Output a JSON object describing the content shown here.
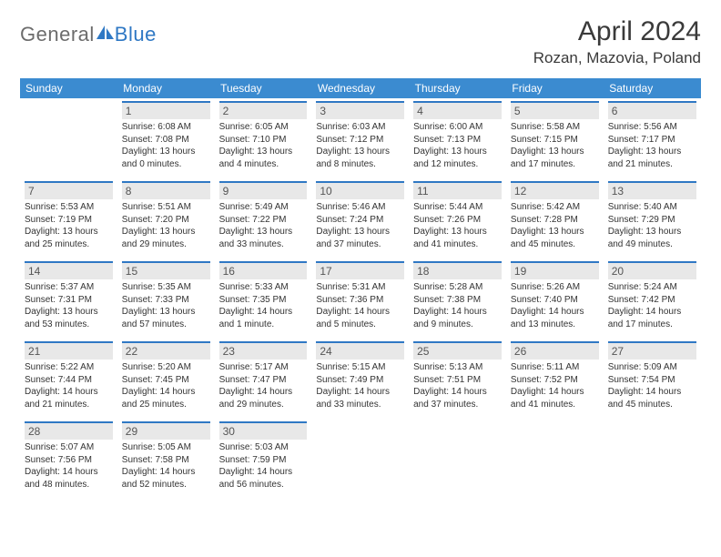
{
  "brand": {
    "word1": "General",
    "word2": "Blue"
  },
  "header": {
    "monthTitle": "April 2024",
    "location": "Rozan, Mazovia, Poland"
  },
  "colors": {
    "headerBar": "#3b8bd0",
    "dayBorder": "#2f78c4",
    "dayBg": "#e8e8e8",
    "text": "#333333"
  },
  "weekdays": [
    "Sunday",
    "Monday",
    "Tuesday",
    "Wednesday",
    "Thursday",
    "Friday",
    "Saturday"
  ],
  "weeks": [
    [
      null,
      {
        "n": "1",
        "sr": "6:08 AM",
        "ss": "7:08 PM",
        "dl": "13 hours and 0 minutes."
      },
      {
        "n": "2",
        "sr": "6:05 AM",
        "ss": "7:10 PM",
        "dl": "13 hours and 4 minutes."
      },
      {
        "n": "3",
        "sr": "6:03 AM",
        "ss": "7:12 PM",
        "dl": "13 hours and 8 minutes."
      },
      {
        "n": "4",
        "sr": "6:00 AM",
        "ss": "7:13 PM",
        "dl": "13 hours and 12 minutes."
      },
      {
        "n": "5",
        "sr": "5:58 AM",
        "ss": "7:15 PM",
        "dl": "13 hours and 17 minutes."
      },
      {
        "n": "6",
        "sr": "5:56 AM",
        "ss": "7:17 PM",
        "dl": "13 hours and 21 minutes."
      }
    ],
    [
      {
        "n": "7",
        "sr": "5:53 AM",
        "ss": "7:19 PM",
        "dl": "13 hours and 25 minutes."
      },
      {
        "n": "8",
        "sr": "5:51 AM",
        "ss": "7:20 PM",
        "dl": "13 hours and 29 minutes."
      },
      {
        "n": "9",
        "sr": "5:49 AM",
        "ss": "7:22 PM",
        "dl": "13 hours and 33 minutes."
      },
      {
        "n": "10",
        "sr": "5:46 AM",
        "ss": "7:24 PM",
        "dl": "13 hours and 37 minutes."
      },
      {
        "n": "11",
        "sr": "5:44 AM",
        "ss": "7:26 PM",
        "dl": "13 hours and 41 minutes."
      },
      {
        "n": "12",
        "sr": "5:42 AM",
        "ss": "7:28 PM",
        "dl": "13 hours and 45 minutes."
      },
      {
        "n": "13",
        "sr": "5:40 AM",
        "ss": "7:29 PM",
        "dl": "13 hours and 49 minutes."
      }
    ],
    [
      {
        "n": "14",
        "sr": "5:37 AM",
        "ss": "7:31 PM",
        "dl": "13 hours and 53 minutes."
      },
      {
        "n": "15",
        "sr": "5:35 AM",
        "ss": "7:33 PM",
        "dl": "13 hours and 57 minutes."
      },
      {
        "n": "16",
        "sr": "5:33 AM",
        "ss": "7:35 PM",
        "dl": "14 hours and 1 minute."
      },
      {
        "n": "17",
        "sr": "5:31 AM",
        "ss": "7:36 PM",
        "dl": "14 hours and 5 minutes."
      },
      {
        "n": "18",
        "sr": "5:28 AM",
        "ss": "7:38 PM",
        "dl": "14 hours and 9 minutes."
      },
      {
        "n": "19",
        "sr": "5:26 AM",
        "ss": "7:40 PM",
        "dl": "14 hours and 13 minutes."
      },
      {
        "n": "20",
        "sr": "5:24 AM",
        "ss": "7:42 PM",
        "dl": "14 hours and 17 minutes."
      }
    ],
    [
      {
        "n": "21",
        "sr": "5:22 AM",
        "ss": "7:44 PM",
        "dl": "14 hours and 21 minutes."
      },
      {
        "n": "22",
        "sr": "5:20 AM",
        "ss": "7:45 PM",
        "dl": "14 hours and 25 minutes."
      },
      {
        "n": "23",
        "sr": "5:17 AM",
        "ss": "7:47 PM",
        "dl": "14 hours and 29 minutes."
      },
      {
        "n": "24",
        "sr": "5:15 AM",
        "ss": "7:49 PM",
        "dl": "14 hours and 33 minutes."
      },
      {
        "n": "25",
        "sr": "5:13 AM",
        "ss": "7:51 PM",
        "dl": "14 hours and 37 minutes."
      },
      {
        "n": "26",
        "sr": "5:11 AM",
        "ss": "7:52 PM",
        "dl": "14 hours and 41 minutes."
      },
      {
        "n": "27",
        "sr": "5:09 AM",
        "ss": "7:54 PM",
        "dl": "14 hours and 45 minutes."
      }
    ],
    [
      {
        "n": "28",
        "sr": "5:07 AM",
        "ss": "7:56 PM",
        "dl": "14 hours and 48 minutes."
      },
      {
        "n": "29",
        "sr": "5:05 AM",
        "ss": "7:58 PM",
        "dl": "14 hours and 52 minutes."
      },
      {
        "n": "30",
        "sr": "5:03 AM",
        "ss": "7:59 PM",
        "dl": "14 hours and 56 minutes."
      },
      null,
      null,
      null,
      null
    ]
  ],
  "labels": {
    "sunrise": "Sunrise:",
    "sunset": "Sunset:",
    "daylight": "Daylight:"
  }
}
